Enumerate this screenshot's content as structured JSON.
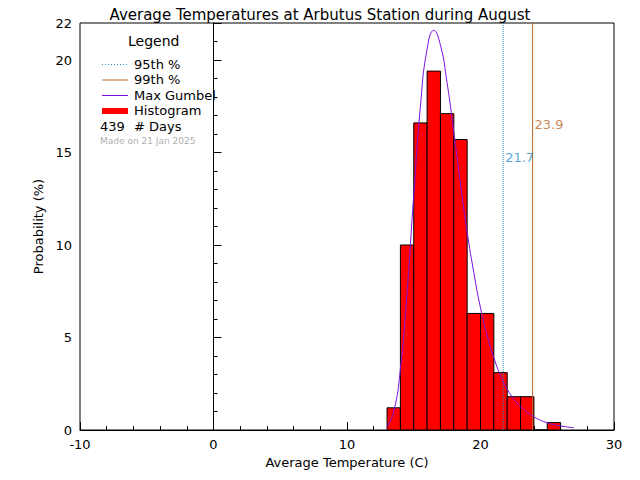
{
  "chart_data": {
    "type": "histogram",
    "title": "Average Temperatures at Arbutus Station during August",
    "x_label": "Average Temperature (C)",
    "y_label": "Probability (%)",
    "xlim": [
      -10,
      30
    ],
    "xticks": [
      -10,
      0,
      10,
      20,
      30
    ],
    "ylim": [
      0,
      22
    ],
    "yticks": [
      0,
      5,
      10,
      15,
      20
    ],
    "grid": false,
    "legend": "upper left",
    "legend_title": "Legend",
    "series": [
      {
        "name": "Histogram",
        "type": "bar",
        "color": "#ff0000",
        "bins": [
          13,
          14,
          15,
          16,
          17,
          18,
          19,
          20,
          21,
          22,
          23,
          24,
          25,
          26
        ],
        "values": [
          1.2,
          10.0,
          16.6,
          19.4,
          17.1,
          15.7,
          6.3,
          6.3,
          3.1,
          1.8,
          1.8,
          0,
          0.4
        ]
      },
      {
        "name": "Max Gumbel",
        "type": "line",
        "color": "#7a10e0",
        "line_style": "solid",
        "x": [
          13,
          13.5,
          14,
          14.5,
          15,
          15.5,
          16,
          16.5,
          17,
          17.5,
          18,
          18.5,
          19,
          19.5,
          20,
          20.5,
          21,
          21.5,
          22,
          22.5,
          23,
          23.5,
          24,
          25,
          26,
          27
        ],
        "values": [
          0.18,
          0.99,
          3.3,
          7.45,
          12.7,
          17.5,
          20.6,
          21.6,
          20.8,
          18.75,
          16.1,
          13.3,
          10.7,
          8.5,
          6.6,
          5.1,
          3.9,
          2.95,
          2.2,
          1.68,
          1.26,
          0.95,
          0.71,
          0.39,
          0.22,
          0.12
        ]
      }
    ],
    "reference_lines": [
      {
        "name": "95th %",
        "x": 21.7,
        "color": "#2a8fd0",
        "line_style": "dotted"
      },
      {
        "name": "99th %",
        "x": 23.9,
        "color": "#b8682a",
        "line_style": "solid"
      }
    ],
    "days": 439,
    "days_label": "# Days",
    "made_on": "Made on 21 Jan 2025"
  }
}
